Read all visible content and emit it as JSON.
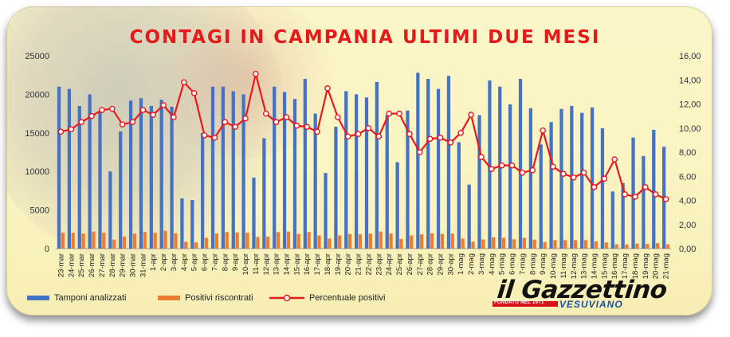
{
  "title": "CONTAGI IN CAMPANIA ULTIMI DUE MESI",
  "logo": {
    "name": "il Gazzettino",
    "subtitle": "VESUVIANO",
    "founded": "FONDATO NEL 1971"
  },
  "colors": {
    "tamponi": "#4472c4",
    "positivi": "#ed7d31",
    "percentuale": "#e8191e",
    "title": "#e6191b"
  },
  "chart_data": {
    "type": "bar",
    "title": "CONTAGI IN CAMPANIA ULTIMI DUE MESI",
    "ylim_left": [
      0,
      25000
    ],
    "ylim_right": [
      0,
      16
    ],
    "yticks_left": [
      "0",
      "5000",
      "10000",
      "15000",
      "20000",
      "25000"
    ],
    "yticks_right": [
      "0,00",
      "2,00",
      "4,00",
      "6,00",
      "8,00",
      "10,00",
      "12,00",
      "14,00",
      "16,00"
    ],
    "legend_position": "bottom",
    "categories": [
      "23-mar",
      "24-mar",
      "25-mar",
      "26-mar",
      "27-mar",
      "28-mar",
      "29-mar",
      "30-mar",
      "31-mar",
      "1-apr",
      "2-apr",
      "3-apr",
      "4-apr",
      "5-apr",
      "6-apr",
      "7-apr",
      "8-apr",
      "9-apr",
      "10-apr",
      "11-apr",
      "12-apr",
      "13-apr",
      "14-apr",
      "15-apr",
      "16-apr",
      "17-apr",
      "18-apr",
      "19-apr",
      "20-apr",
      "21-apr",
      "22-apr",
      "23-apr",
      "24-apr",
      "25-apr",
      "26-apr",
      "27-apr",
      "28-apr",
      "29-apr",
      "30-apr",
      "1-mag",
      "2-mag",
      "3-mag",
      "4-mag",
      "5-mag",
      "6-mag",
      "7-mag",
      "8-mag",
      "9-mag",
      "10-mag",
      "11-mag",
      "12-mag",
      "13-mag",
      "14-mag",
      "15-mag",
      "16-mag",
      "17-mag",
      "18-mag",
      "19-mag",
      "20-mag",
      "21-mag"
    ],
    "series": [
      {
        "name": "Tamponi analizzati",
        "type": "bar",
        "values": [
          21000,
          20700,
          18500,
          20000,
          17800,
          10000,
          15200,
          19200,
          19500,
          18500,
          19300,
          18400,
          6500,
          6300,
          15000,
          21000,
          21000,
          20400,
          20000,
          9200,
          14300,
          21000,
          20300,
          19400,
          22000,
          17500,
          9800,
          15800,
          20400,
          20000,
          19600,
          21600,
          17300,
          11200,
          17900,
          22800,
          22000,
          20700,
          22400,
          13800,
          8300,
          17300,
          21800,
          21000,
          18700,
          22000,
          18200,
          13500,
          16400,
          18100,
          18500,
          17600,
          18300,
          15600,
          7400,
          8500,
          14400,
          12000,
          15400,
          13200
        ]
      },
      {
        "name": "Positivi riscontrati",
        "type": "bar",
        "values": [
          2050,
          2050,
          1950,
          2200,
          2050,
          1150,
          1550,
          1950,
          2150,
          2050,
          2300,
          1980,
          880,
          800,
          1400,
          1950,
          2150,
          2100,
          2050,
          1500,
          1550,
          2150,
          2200,
          1900,
          2150,
          1700,
          1300,
          1700,
          1880,
          1850,
          1950,
          2200,
          1950,
          1250,
          1700,
          1850,
          1980,
          1900,
          1950,
          1300,
          900,
          1180,
          1450,
          1400,
          1200,
          1400,
          1150,
          850,
          1100,
          1100,
          1100,
          1100,
          930,
          800,
          550,
          530,
          640,
          600,
          700,
          550
        ]
      },
      {
        "name": "Percentuale positivi",
        "type": "line",
        "axis": "right",
        "values": [
          9.7,
          9.9,
          10.5,
          11.0,
          11.5,
          11.6,
          10.3,
          10.5,
          11.5,
          11.1,
          11.9,
          10.9,
          13.8,
          12.9,
          9.4,
          9.2,
          10.5,
          10.1,
          10.8,
          14.5,
          11.2,
          10.5,
          10.9,
          10.2,
          10.1,
          9.7,
          13.3,
          10.9,
          9.3,
          9.5,
          10.0,
          9.3,
          11.2,
          11.2,
          9.5,
          8.0,
          9.1,
          9.2,
          8.8,
          9.6,
          11.1,
          7.6,
          6.6,
          6.9,
          6.9,
          6.3,
          6.5,
          9.8,
          6.8,
          6.2,
          5.9,
          6.3,
          5.1,
          5.8,
          7.4,
          4.5,
          4.3,
          5.1,
          4.5,
          4.1
        ]
      }
    ]
  }
}
